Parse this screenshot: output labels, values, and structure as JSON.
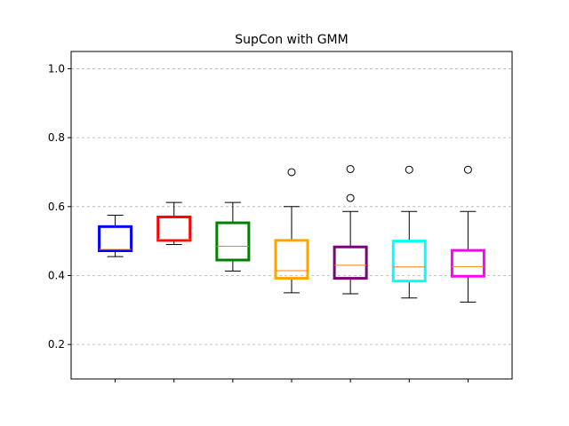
{
  "chart_data": {
    "type": "box",
    "title": "SupCon with GMM",
    "xlabel": "",
    "ylabel": "",
    "ylim": [
      0.1,
      1.05
    ],
    "yticks": [
      0.2,
      0.4,
      0.6,
      0.8,
      1.0
    ],
    "ytick_labels": [
      "0.2",
      "0.4",
      "0.6",
      "0.8",
      "1.0"
    ],
    "grid": "y-dashed",
    "median_color": "#ff7f0e",
    "boxes": [
      {
        "color": "#0000ff",
        "whislo": 0.455,
        "q1": 0.472,
        "med": 0.476,
        "q3": 0.542,
        "whishi": 0.575,
        "fliers": []
      },
      {
        "color": "#ff0000",
        "whislo": 0.49,
        "q1": 0.502,
        "med": 0.505,
        "q3": 0.57,
        "whishi": 0.612,
        "fliers": []
      },
      {
        "color": "#008000",
        "whislo": 0.413,
        "q1": 0.445,
        "med": 0.485,
        "q3": 0.553,
        "whishi": 0.612,
        "fliers": []
      },
      {
        "color": "#ffa500",
        "whislo": 0.35,
        "q1": 0.392,
        "med": 0.414,
        "q3": 0.502,
        "whishi": 0.6,
        "fliers": [
          0.7
        ]
      },
      {
        "color": "#800080",
        "whislo": 0.347,
        "q1": 0.392,
        "med": 0.43,
        "q3": 0.483,
        "whishi": 0.586,
        "fliers": [
          0.625,
          0.709
        ]
      },
      {
        "color": "#00ffff",
        "whislo": 0.335,
        "q1": 0.384,
        "med": 0.425,
        "q3": 0.5,
        "whishi": 0.586,
        "fliers": [
          0.707
        ]
      },
      {
        "color": "#ff00ff",
        "whislo": 0.323,
        "q1": 0.398,
        "med": 0.426,
        "q3": 0.473,
        "whishi": 0.586,
        "fliers": [
          0.707
        ]
      }
    ]
  }
}
